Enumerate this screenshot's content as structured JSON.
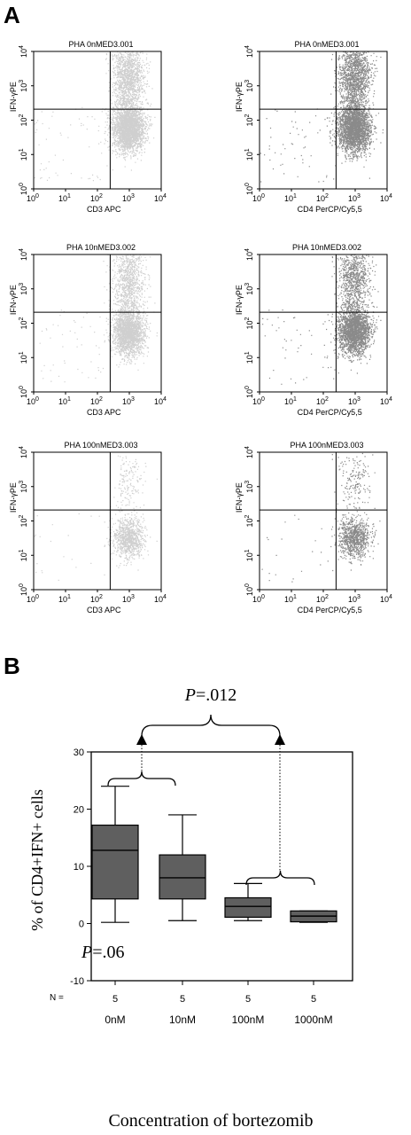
{
  "panel_a": {
    "label": "A",
    "y_axis_label": "IFN-γPE",
    "tick_base": "10",
    "tick_exponents": [
      "0",
      "1",
      "2",
      "3",
      "4"
    ],
    "plots": [
      {
        "title": "PHA 0nMED3.001",
        "xlabel": "CD3 APC",
        "color": "#cfcfcf",
        "density": 1.0
      },
      {
        "title": "PHA 0nMED3.001",
        "xlabel": "CD4 PerCP/Cy5,5",
        "color": "#8a8a8a",
        "density": 1.0
      },
      {
        "title": "PHA 10nMED3.002",
        "xlabel": "CD3 APC",
        "color": "#cfcfcf",
        "density": 0.8
      },
      {
        "title": "PHA 10nMED3.002",
        "xlabel": "CD4 PerCP/Cy5,5",
        "color": "#8a8a8a",
        "density": 0.8
      },
      {
        "title": "PHA 100nMED3.003",
        "xlabel": "CD3 APC",
        "color": "#cfcfcf",
        "density": 0.35
      },
      {
        "title": "PHA 100nMED3.003",
        "xlabel": "CD4 PerCP/Cy5,5",
        "color": "#8a8a8a",
        "density": 0.35
      }
    ]
  },
  "chart_data": {
    "type": "box",
    "panel_label": "B",
    "categories": [
      "0nM",
      "10nM",
      "100nM",
      "1000nM"
    ],
    "n_label": "N =",
    "n_values": [
      "5",
      "5",
      "5",
      "5"
    ],
    "boxes": [
      {
        "min": 0.2,
        "q1": 4.3,
        "median": 12.8,
        "q3": 17.2,
        "max": 24.0
      },
      {
        "min": 0.5,
        "q1": 4.3,
        "median": 8.0,
        "q3": 12.0,
        "max": 19.0
      },
      {
        "min": 0.5,
        "q1": 1.1,
        "median": 3.0,
        "q3": 4.5,
        "max": 7.0
      },
      {
        "min": 0.2,
        "q1": 0.3,
        "median": 1.3,
        "q3": 2.2,
        "max": 2.2
      }
    ],
    "ylabel": "% of CD4+IFN+ cells",
    "xlabel": "Concentration of bortezomib",
    "ylim": [
      -10,
      30
    ],
    "yticks": [
      "-10",
      "0",
      "10",
      "20",
      "30"
    ],
    "p_inner": {
      "italic": "P",
      "rest": "=.06"
    },
    "p_top": {
      "italic": "P",
      "rest": "=.012"
    },
    "box_color": "#5f5f5f"
  }
}
